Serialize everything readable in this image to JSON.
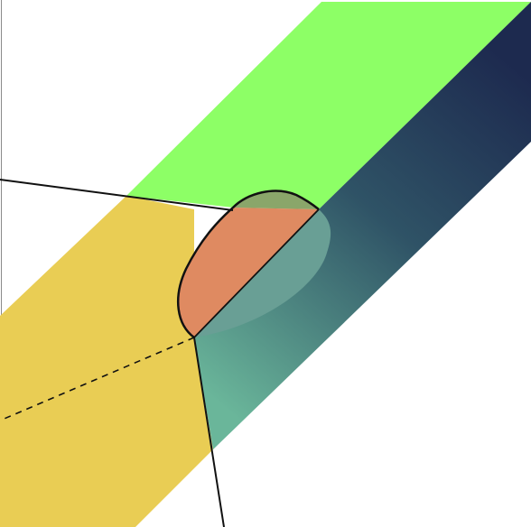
{
  "diagram": {
    "colors": {
      "background": "#ffffff",
      "green_face": "#8dff66",
      "yellow_face": "#e9cd54",
      "dark_face_top": "#1d2a4f",
      "dark_face_mid": "#2f5366",
      "dark_face_bottom": "#6ab69a",
      "orange_region": "#df8a61",
      "olive_region": "#8aa66a",
      "teal_region": "#699f95",
      "edge_line": "#111111"
    }
  }
}
